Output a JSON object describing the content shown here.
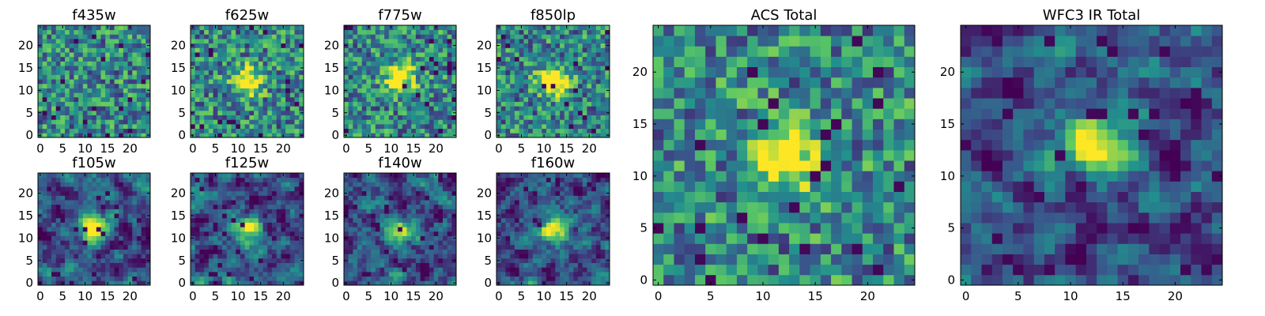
{
  "figure": {
    "colormap": [
      "#440154",
      "#3b528b",
      "#21908d",
      "#5dc863",
      "#fde725"
    ]
  },
  "chart_data": [
    {
      "type": "heatmap",
      "title": "f435w",
      "x_ticks": [
        "0",
        "5",
        "10",
        "15",
        "20"
      ],
      "y_ticks": [
        "0",
        "5",
        "10",
        "15",
        "20"
      ],
      "xlim": [
        -0.5,
        24.5
      ],
      "ylim": [
        -0.5,
        24.5
      ],
      "grid": false,
      "peak": null,
      "smooth": false
    },
    {
      "type": "heatmap",
      "title": "f625w",
      "x_ticks": [
        "0",
        "5",
        "10",
        "15",
        "20"
      ],
      "y_ticks": [
        "0",
        "5",
        "10",
        "15",
        "20"
      ],
      "xlim": [
        -0.5,
        24.5
      ],
      "ylim": [
        -0.5,
        24.5
      ],
      "grid": false,
      "peak": [
        12,
        12
      ],
      "smooth": false
    },
    {
      "type": "heatmap",
      "title": "f775w",
      "x_ticks": [
        "0",
        "5",
        "10",
        "15",
        "20"
      ],
      "y_ticks": [
        "0",
        "5",
        "10",
        "15",
        "20"
      ],
      "xlim": [
        -0.5,
        24.5
      ],
      "ylim": [
        -0.5,
        24.5
      ],
      "grid": false,
      "peak": [
        12,
        13
      ],
      "smooth": false
    },
    {
      "type": "heatmap",
      "title": "f850lp",
      "x_ticks": [
        "0",
        "5",
        "10",
        "15",
        "20"
      ],
      "y_ticks": [
        "0",
        "5",
        "10",
        "15",
        "20"
      ],
      "xlim": [
        -0.5,
        24.5
      ],
      "ylim": [
        -0.5,
        24.5
      ],
      "grid": false,
      "peak": [
        12,
        12
      ],
      "smooth": false
    },
    {
      "type": "heatmap",
      "title": "ACS Total",
      "x_ticks": [
        "0",
        "5",
        "10",
        "15",
        "20"
      ],
      "y_ticks": [
        "0",
        "5",
        "10",
        "15",
        "20"
      ],
      "xlim": [
        -0.5,
        24.5
      ],
      "ylim": [
        -0.5,
        24.5
      ],
      "grid": false,
      "peak": [
        12,
        12
      ],
      "smooth": false
    },
    {
      "type": "heatmap",
      "title": "WFC3 IR Total",
      "x_ticks": [
        "0",
        "5",
        "10",
        "15",
        "20"
      ],
      "y_ticks": [
        "0",
        "5",
        "10",
        "15",
        "20"
      ],
      "xlim": [
        -0.5,
        24.5
      ],
      "ylim": [
        -0.5,
        24.5
      ],
      "grid": false,
      "peak": [
        12,
        13
      ],
      "smooth": true
    },
    {
      "type": "heatmap",
      "title": "f105w",
      "x_ticks": [
        "0",
        "5",
        "10",
        "15",
        "20"
      ],
      "y_ticks": [
        "0",
        "5",
        "10",
        "15",
        "20"
      ],
      "xlim": [
        -0.5,
        24.5
      ],
      "ylim": [
        -0.5,
        24.5
      ],
      "grid": false,
      "peak": [
        12,
        12
      ],
      "smooth": true
    },
    {
      "type": "heatmap",
      "title": "f125w",
      "x_ticks": [
        "0",
        "5",
        "10",
        "15",
        "20"
      ],
      "y_ticks": [
        "0",
        "5",
        "10",
        "15",
        "20"
      ],
      "xlim": [
        -0.5,
        24.5
      ],
      "ylim": [
        -0.5,
        24.5
      ],
      "grid": false,
      "peak": [
        12,
        12
      ],
      "smooth": true
    },
    {
      "type": "heatmap",
      "title": "f140w",
      "x_ticks": [
        "0",
        "5",
        "10",
        "15",
        "20"
      ],
      "y_ticks": [
        "0",
        "5",
        "10",
        "15",
        "20"
      ],
      "xlim": [
        -0.5,
        24.5
      ],
      "ylim": [
        -0.5,
        24.5
      ],
      "grid": false,
      "peak": [
        12,
        12
      ],
      "smooth": true
    },
    {
      "type": "heatmap",
      "title": "f160w",
      "x_ticks": [
        "0",
        "5",
        "10",
        "15",
        "20"
      ],
      "y_ticks": [
        "0",
        "5",
        "10",
        "15",
        "20"
      ],
      "xlim": [
        -0.5,
        24.5
      ],
      "ylim": [
        -0.5,
        24.5
      ],
      "grid": false,
      "peak": [
        12,
        12
      ],
      "smooth": true
    }
  ]
}
